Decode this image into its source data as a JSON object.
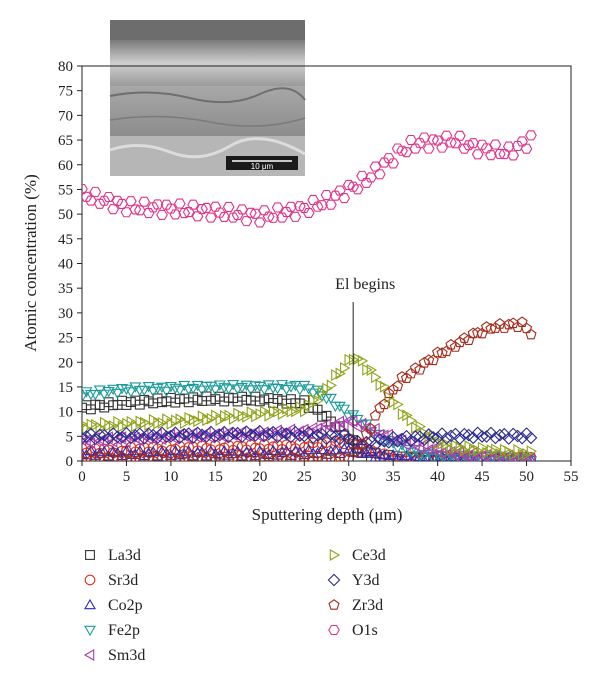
{
  "chart_data": {
    "type": "scatter",
    "xlabel": "Sputtering depth (μm)",
    "ylabel": "Atomic concentration (%)",
    "xlim": [
      0,
      55
    ],
    "ylim": [
      0,
      80
    ],
    "xticks": [
      0,
      5,
      10,
      15,
      20,
      25,
      30,
      35,
      40,
      45,
      50,
      55
    ],
    "yticks": [
      0,
      5,
      10,
      15,
      20,
      25,
      30,
      35,
      40,
      45,
      50,
      55,
      60,
      65,
      70,
      75,
      80
    ],
    "grid": false,
    "legend_position": "bottom",
    "annotation": {
      "text": "El begins",
      "x": 30.5
    },
    "inset": {
      "description": "SEM cross-section micrograph",
      "scale_bar_label": "10 μm"
    },
    "sample_step": 0.5,
    "series": [
      {
        "name": "La3d",
        "marker": "square",
        "color": "#333333",
        "profile": [
          [
            0,
            10.8
          ],
          [
            5,
            11.8
          ],
          [
            10,
            12.3
          ],
          [
            15,
            12.6
          ],
          [
            20,
            12.5
          ],
          [
            25,
            11.8
          ],
          [
            27,
            9.5
          ],
          [
            29,
            6.5
          ],
          [
            30,
            4.5
          ],
          [
            31,
            3
          ],
          [
            32,
            1.5
          ],
          [
            35,
            0.5
          ],
          [
            50.5,
            0.2
          ]
        ]
      },
      {
        "name": "Sr3d",
        "marker": "circle",
        "color": "#d9311e",
        "profile": [
          [
            0,
            2
          ],
          [
            10,
            2.5
          ],
          [
            20,
            2.8
          ],
          [
            25,
            3
          ],
          [
            28,
            3.5
          ],
          [
            30,
            4
          ],
          [
            31,
            3.5
          ],
          [
            33,
            1.5
          ],
          [
            35,
            0.5
          ],
          [
            50.5,
            0.2
          ]
        ]
      },
      {
        "name": "Co2p",
        "marker": "triangle-up",
        "color": "#2a2ab5",
        "profile": [
          [
            0,
            1.5
          ],
          [
            20,
            1.5
          ],
          [
            28,
            1.8
          ],
          [
            30,
            2.2
          ],
          [
            31,
            2
          ],
          [
            33,
            1.2
          ],
          [
            36,
            0.5
          ],
          [
            50.5,
            0.2
          ]
        ]
      },
      {
        "name": "Fe2p",
        "marker": "triangle-down",
        "color": "#1a9a9a",
        "profile": [
          [
            0,
            13.5
          ],
          [
            5,
            14.5
          ],
          [
            15,
            15
          ],
          [
            25,
            15
          ],
          [
            27,
            13.5
          ],
          [
            29,
            11
          ],
          [
            30,
            9.5
          ],
          [
            31,
            8.5
          ],
          [
            33,
            5.5
          ],
          [
            35,
            3.5
          ],
          [
            38,
            1.5
          ],
          [
            41,
            0.8
          ],
          [
            50.5,
            0.3
          ]
        ]
      },
      {
        "name": "Sm3d",
        "marker": "triangle-left",
        "color": "#b03ab0",
        "profile": [
          [
            0,
            4
          ],
          [
            10,
            5
          ],
          [
            20,
            5.5
          ],
          [
            25,
            6
          ],
          [
            28,
            7
          ],
          [
            30,
            8
          ],
          [
            31,
            7.5
          ],
          [
            33,
            6
          ],
          [
            35,
            4.5
          ],
          [
            38,
            3
          ],
          [
            42,
            1.5
          ],
          [
            46,
            0.8
          ],
          [
            50.5,
            0.3
          ]
        ]
      },
      {
        "name": "Ce3d",
        "marker": "triangle-right",
        "color": "#8fa319",
        "profile": [
          [
            0,
            7
          ],
          [
            10,
            8
          ],
          [
            20,
            9.5
          ],
          [
            25,
            10.5
          ],
          [
            27,
            13.5
          ],
          [
            29,
            18
          ],
          [
            30.5,
            21
          ],
          [
            31.5,
            20
          ],
          [
            33,
            17
          ],
          [
            35,
            12
          ],
          [
            37,
            8
          ],
          [
            39,
            5
          ],
          [
            41,
            3
          ],
          [
            45,
            2.2
          ],
          [
            50.5,
            1.5
          ]
        ]
      },
      {
        "name": "Y3d",
        "marker": "diamond",
        "color": "#2a2a8f",
        "profile": [
          [
            0,
            5
          ],
          [
            10,
            5.2
          ],
          [
            20,
            5.5
          ],
          [
            25,
            5.3
          ],
          [
            28,
            5
          ],
          [
            30,
            4.8
          ],
          [
            31,
            3.5
          ],
          [
            33,
            3.8
          ],
          [
            36,
            4.5
          ],
          [
            40,
            5
          ],
          [
            45,
            5.2
          ],
          [
            50.5,
            5
          ]
        ]
      },
      {
        "name": "Zr3d",
        "marker": "pentagon",
        "color": "#a52a1a",
        "profile": [
          [
            0,
            0.3
          ],
          [
            29,
            0.4
          ],
          [
            30,
            0.8
          ],
          [
            31,
            2
          ],
          [
            32,
            5
          ],
          [
            33,
            9
          ],
          [
            34,
            12
          ],
          [
            35,
            14.5
          ],
          [
            36,
            16.5
          ],
          [
            38,
            19
          ],
          [
            40,
            21.5
          ],
          [
            42,
            23.5
          ],
          [
            44,
            25.5
          ],
          [
            46,
            27
          ],
          [
            48,
            27.5
          ],
          [
            49.5,
            27.7
          ],
          [
            50.5,
            26
          ]
        ]
      },
      {
        "name": "O1s",
        "marker": "hexagon",
        "color": "#e0338a",
        "profile": [
          [
            0,
            54
          ],
          [
            5,
            51.5
          ],
          [
            10,
            51
          ],
          [
            15,
            50.5
          ],
          [
            20,
            49.5
          ],
          [
            25,
            51
          ],
          [
            28,
            53
          ],
          [
            30,
            55
          ],
          [
            32,
            57
          ],
          [
            34,
            60
          ],
          [
            36,
            63
          ],
          [
            38,
            64.5
          ],
          [
            40,
            64.5
          ],
          [
            42,
            65
          ],
          [
            44,
            63.5
          ],
          [
            46,
            63
          ],
          [
            48,
            62.5
          ],
          [
            50.5,
            65
          ]
        ]
      }
    ]
  }
}
